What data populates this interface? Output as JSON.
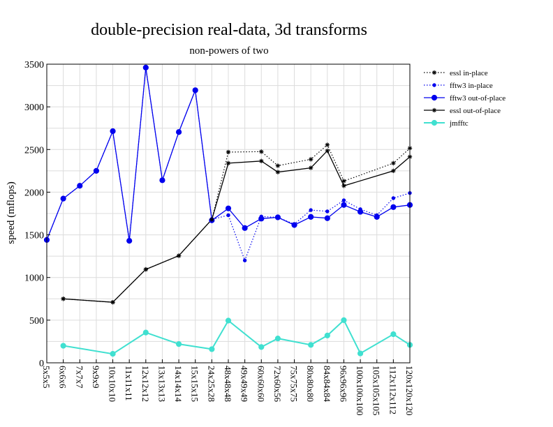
{
  "chart_data": {
    "type": "line",
    "title": "double-precision real-data, 3d transforms",
    "subtitle": "non-powers of two",
    "xlabel": "",
    "ylabel": "speed (mflops)",
    "ylim": [
      0,
      3500
    ],
    "yticks": [
      0,
      500,
      1000,
      1500,
      2000,
      2500,
      3000,
      3500
    ],
    "grid": true,
    "legend_position": "right",
    "categories": [
      "5x5x5",
      "6x6x6",
      "7x7x7",
      "9x9x9",
      "10x10x10",
      "11x11x11",
      "12x12x12",
      "13x13x13",
      "14x14x14",
      "15x15x15",
      "24x25x28",
      "48x48x48",
      "49x49x49",
      "60x60x60",
      "72x60x56",
      "75x75x75",
      "80x80x80",
      "84x84x84",
      "96x96x96",
      "100x100x100",
      "105x105x105",
      "112x112x112",
      "120x120x120"
    ],
    "series": [
      {
        "name": "essl in-place",
        "color": "#000000",
        "style": "dotted",
        "marker": "star",
        "values": [
          null,
          750,
          null,
          null,
          710,
          null,
          1095,
          null,
          1255,
          null,
          1680,
          2470,
          null,
          2475,
          2310,
          null,
          2385,
          2555,
          2130,
          null,
          null,
          2340,
          2515
        ]
      },
      {
        "name": "fftw3 in-place",
        "color": "#0000ee",
        "style": "dotted",
        "marker": "small-dot",
        "values": [
          1440,
          1925,
          2075,
          2250,
          2715,
          1430,
          3460,
          2140,
          2705,
          3195,
          1680,
          1730,
          1200,
          1715,
          1705,
          1625,
          1790,
          1775,
          1905,
          1800,
          1730,
          1930,
          1990
        ]
      },
      {
        "name": "fftw3 out-of-place",
        "color": "#0000ee",
        "style": "solid",
        "marker": "dot",
        "values": [
          1440,
          1925,
          2075,
          2250,
          2715,
          1430,
          3460,
          2140,
          2705,
          3195,
          1670,
          1810,
          1580,
          1690,
          1705,
          1615,
          1710,
          1695,
          1850,
          1770,
          1710,
          1825,
          1850
        ]
      },
      {
        "name": "essl out-of-place",
        "color": "#000000",
        "style": "solid",
        "marker": "star",
        "values": [
          null,
          750,
          null,
          null,
          710,
          null,
          1095,
          null,
          1255,
          null,
          1680,
          2340,
          null,
          2365,
          2235,
          null,
          2285,
          2485,
          2075,
          null,
          null,
          2250,
          2415
        ]
      },
      {
        "name": "jmfftc",
        "color": "#40e0d0",
        "style": "solid",
        "marker": "dot",
        "values": [
          null,
          200,
          null,
          null,
          105,
          null,
          355,
          null,
          220,
          null,
          160,
          495,
          null,
          185,
          285,
          null,
          210,
          320,
          500,
          110,
          null,
          335,
          210
        ]
      }
    ]
  }
}
